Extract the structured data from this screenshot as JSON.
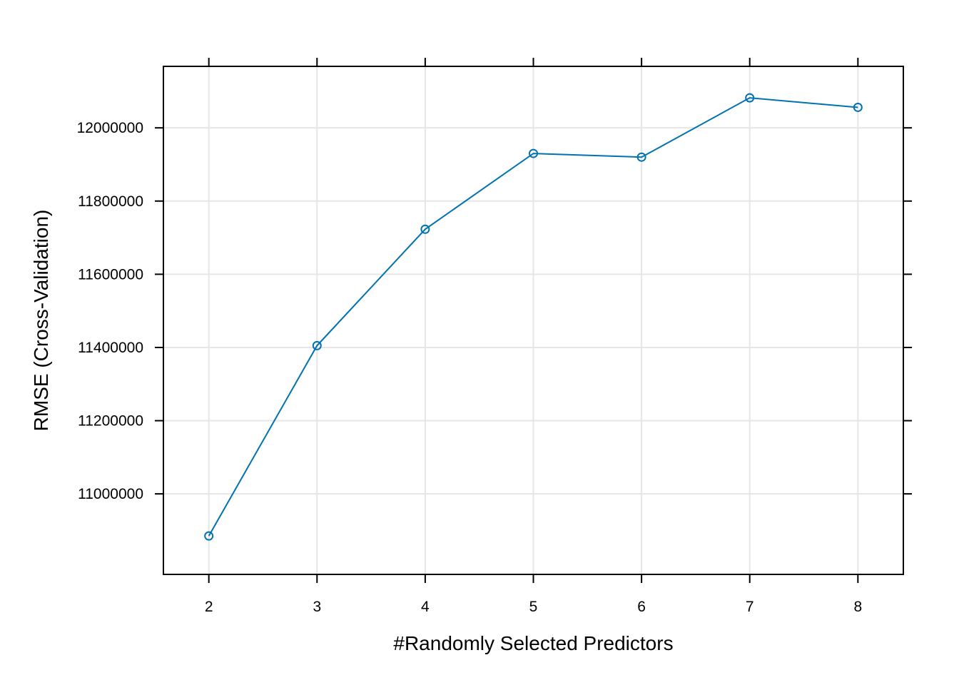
{
  "chart_data": {
    "type": "line",
    "title": "",
    "xlabel": "#Randomly Selected Predictors",
    "ylabel": "RMSE (Cross-Validation)",
    "x": [
      2,
      3,
      4,
      5,
      6,
      7,
      8
    ],
    "series": [
      {
        "values": [
          10885000,
          11405000,
          11723000,
          11930000,
          11920000,
          12082000,
          12056000
        ]
      }
    ],
    "xlim": [
      1.58,
      8.42
    ],
    "ylim": [
      10780000,
      12168000
    ],
    "x_ticks": [
      2,
      3,
      4,
      5,
      6,
      7,
      8
    ],
    "x_tick_labels": [
      "2",
      "3",
      "4",
      "5",
      "6",
      "7",
      "8"
    ],
    "y_ticks": [
      11000000,
      11200000,
      11400000,
      11600000,
      11800000,
      12000000
    ],
    "y_tick_labels": [
      "11000000",
      "11200000",
      "11400000",
      "11600000",
      "11800000",
      "12000000"
    ],
    "grid": true,
    "marker": "open-circle",
    "colors": {
      "series": "#0072b2",
      "grid": "#e6e6e6",
      "axis": "#000000"
    }
  }
}
